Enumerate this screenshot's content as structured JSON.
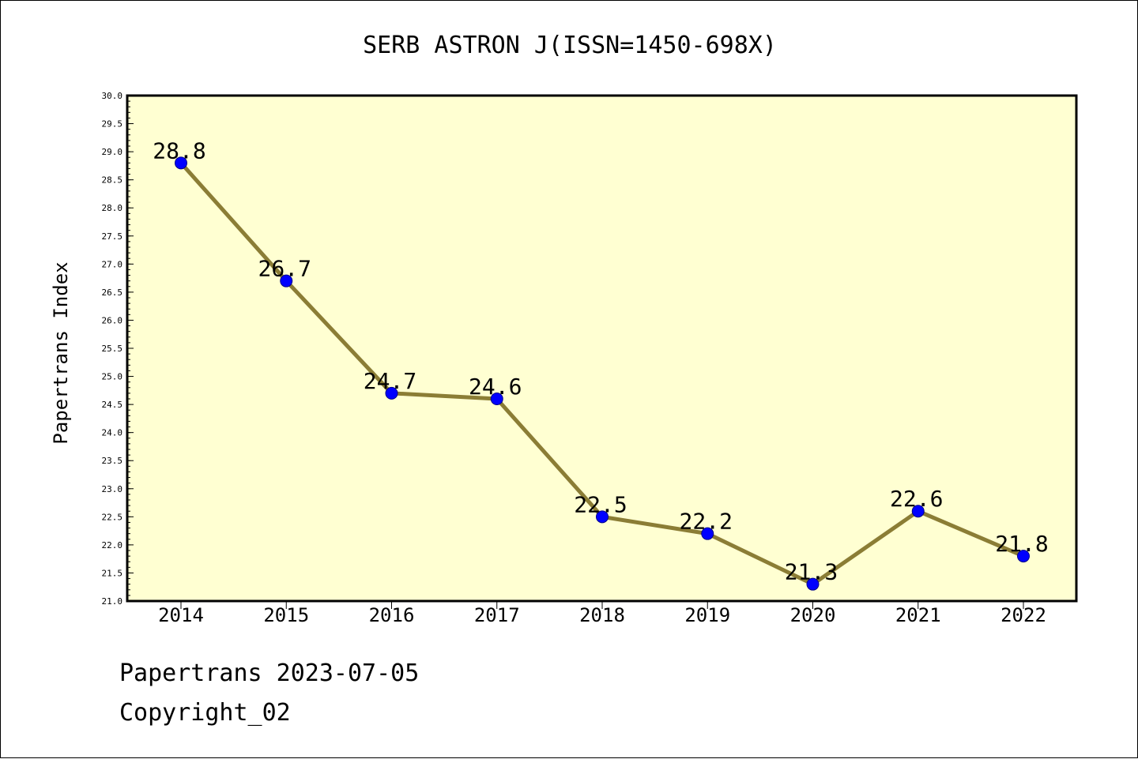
{
  "chart_data": {
    "type": "line",
    "title": "SERB ASTRON J(ISSN=1450-698X)",
    "xlabel": "",
    "ylabel": "Papertrans Index",
    "categories": [
      "2014",
      "2015",
      "2016",
      "2017",
      "2018",
      "2019",
      "2020",
      "2021",
      "2022"
    ],
    "series": [
      {
        "values": [
          28.8,
          26.7,
          24.7,
          24.6,
          22.5,
          22.2,
          21.3,
          22.6,
          21.8
        ],
        "data_labels": [
          "28.8",
          "26.7",
          "24.7",
          "24.6",
          "22.5",
          "22.2",
          "21.3",
          "22.6",
          "21.8"
        ]
      }
    ],
    "ylim": [
      21.0,
      30.0
    ],
    "yticks": [
      "21.0",
      "21.5",
      "22.0",
      "22.5",
      "23.0",
      "23.5",
      "24.0",
      "24.5",
      "25.0",
      "25.5",
      "26.0",
      "26.5",
      "27.0",
      "27.5",
      "28.0",
      "28.5",
      "29.0",
      "29.5",
      "30.0"
    ],
    "grid": false,
    "legend": "none"
  },
  "colors": {
    "plot_background": "#ffffd2",
    "line": "#8b7d35",
    "marker": "#0000ff",
    "marker_edge": "#00008b"
  },
  "footer": {
    "date_line": "Papertrans 2023-07-05",
    "copyright": "Copyright_02"
  }
}
